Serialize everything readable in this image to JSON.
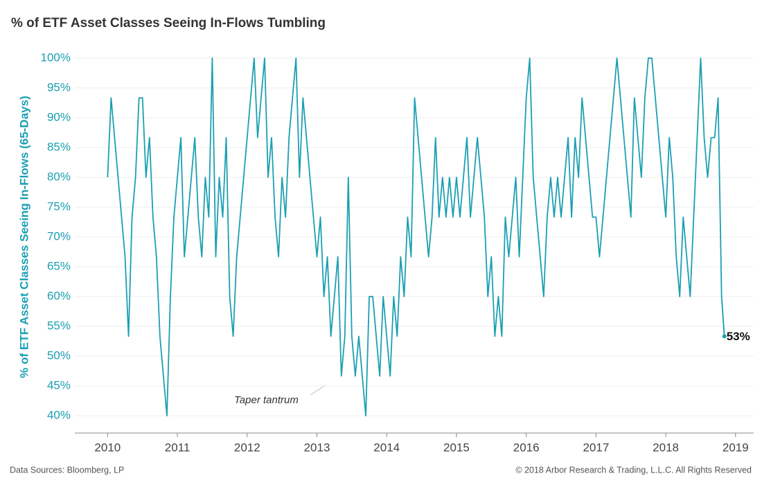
{
  "chart_data": {
    "type": "line",
    "title": "% of ETF Asset Classes Seeing In-Flows Tumbling",
    "y_label": "% of ETF Asset Classes Seeing In-Flows (65-Days)",
    "source": "Data Sources: Bloomberg, LP",
    "copyright": "© 2018 Arbor Research & Trading, L.L.C. All Rights Reserved",
    "annotation": "Taper tantrum",
    "end_label": "53%",
    "color": "#1a9fb2",
    "grid": true,
    "xlim": [
      2009.53,
      2019.26
    ],
    "xticks": [
      2010,
      2011,
      2012,
      2013,
      2014,
      2015,
      2016,
      2017,
      2018,
      2019
    ],
    "ylim": [
      37.1,
      102.2
    ],
    "yticks": [
      {
        "value": 40,
        "label": "40%"
      },
      {
        "value": 45,
        "label": "45%"
      },
      {
        "value": 50,
        "label": "50%"
      },
      {
        "value": 55,
        "label": "55%"
      },
      {
        "value": 60,
        "label": "60%"
      },
      {
        "value": 65,
        "label": "65%"
      },
      {
        "value": 70,
        "label": "70%"
      },
      {
        "value": 75,
        "label": "75%"
      },
      {
        "value": 80,
        "label": "80%"
      },
      {
        "value": 85,
        "label": "85%"
      },
      {
        "value": 90,
        "label": "90%"
      },
      {
        "value": 95,
        "label": "95%"
      },
      {
        "value": 100,
        "label": "100%"
      }
    ],
    "x": [
      2010.0,
      2010.05,
      2010.1,
      2010.15,
      2010.2,
      2010.25,
      2010.3,
      2010.35,
      2010.4,
      2010.45,
      2010.5,
      2010.55,
      2010.6,
      2010.65,
      2010.7,
      2010.75,
      2010.8,
      2010.85,
      2010.9,
      2010.95,
      2011.0,
      2011.05,
      2011.1,
      2011.15,
      2011.2,
      2011.25,
      2011.3,
      2011.35,
      2011.4,
      2011.45,
      2011.5,
      2011.55,
      2011.6,
      2011.65,
      2011.7,
      2011.75,
      2011.8,
      2011.85,
      2011.9,
      2011.95,
      2012.0,
      2012.05,
      2012.1,
      2012.15,
      2012.2,
      2012.25,
      2012.3,
      2012.35,
      2012.4,
      2012.45,
      2012.5,
      2012.55,
      2012.6,
      2012.65,
      2012.7,
      2012.75,
      2012.8,
      2012.85,
      2012.9,
      2012.95,
      2013.0,
      2013.05,
      2013.1,
      2013.15,
      2013.2,
      2013.25,
      2013.3,
      2013.35,
      2013.4,
      2013.45,
      2013.5,
      2013.55,
      2013.6,
      2013.65,
      2013.7,
      2013.75,
      2013.8,
      2013.85,
      2013.9,
      2013.95,
      2014.0,
      2014.05,
      2014.1,
      2014.15,
      2014.2,
      2014.25,
      2014.3,
      2014.35,
      2014.4,
      2014.45,
      2014.5,
      2014.55,
      2014.6,
      2014.65,
      2014.7,
      2014.75,
      2014.8,
      2014.85,
      2014.9,
      2014.95,
      2015.0,
      2015.05,
      2015.1,
      2015.15,
      2015.2,
      2015.25,
      2015.3,
      2015.35,
      2015.4,
      2015.45,
      2015.5,
      2015.55,
      2015.6,
      2015.65,
      2015.7,
      2015.75,
      2015.8,
      2015.85,
      2015.9,
      2015.95,
      2016.0,
      2016.05,
      2016.1,
      2016.15,
      2016.2,
      2016.25,
      2016.3,
      2016.35,
      2016.4,
      2016.45,
      2016.5,
      2016.55,
      2016.6,
      2016.65,
      2016.7,
      2016.75,
      2016.8,
      2016.85,
      2016.9,
      2016.95,
      2017.0,
      2017.05,
      2017.1,
      2017.15,
      2017.2,
      2017.25,
      2017.3,
      2017.35,
      2017.4,
      2017.45,
      2017.5,
      2017.55,
      2017.6,
      2017.65,
      2017.7,
      2017.75,
      2017.8,
      2017.85,
      2017.9,
      2017.95,
      2018.0,
      2018.05,
      2018.1,
      2018.15,
      2018.2,
      2018.25,
      2018.3,
      2018.35,
      2018.4,
      2018.45,
      2018.5,
      2018.55,
      2018.6,
      2018.65,
      2018.7,
      2018.75,
      2018.8,
      2018.84
    ],
    "values": [
      80,
      93.33,
      86.67,
      80,
      73.33,
      66.67,
      53.33,
      73.33,
      80,
      93.33,
      93.33,
      80,
      86.67,
      73.33,
      66.67,
      53.33,
      46.67,
      40,
      60,
      73.33,
      80,
      86.67,
      66.67,
      73.33,
      80,
      86.67,
      73.33,
      66.67,
      80,
      73.33,
      100,
      66.67,
      80,
      73.33,
      86.67,
      60,
      53.33,
      66.67,
      73.33,
      80,
      86.67,
      93.33,
      100,
      86.67,
      93.33,
      100,
      80,
      86.67,
      73.33,
      66.67,
      80,
      73.33,
      86.67,
      93.33,
      100,
      80,
      93.33,
      86.67,
      80,
      73.33,
      66.67,
      73.33,
      60,
      66.67,
      53.33,
      60,
      66.67,
      46.67,
      53.33,
      80,
      53.33,
      46.67,
      53.33,
      46.67,
      40,
      60,
      60,
      53.33,
      46.67,
      60,
      53.33,
      46.67,
      60,
      53.33,
      66.67,
      60,
      73.33,
      66.67,
      93.33,
      86.67,
      80,
      73.33,
      66.67,
      73.33,
      86.67,
      73.33,
      80,
      73.33,
      80,
      73.33,
      80,
      73.33,
      80,
      86.67,
      73.33,
      80,
      86.67,
      80,
      73.33,
      60,
      66.67,
      53.33,
      60,
      53.33,
      73.33,
      66.67,
      73.33,
      80,
      66.67,
      80,
      93.33,
      100,
      80,
      73.33,
      66.67,
      60,
      73.33,
      80,
      73.33,
      80,
      73.33,
      80,
      86.67,
      73.33,
      86.67,
      80,
      93.33,
      86.67,
      80,
      73.33,
      73.33,
      66.67,
      73.33,
      80,
      86.67,
      93.33,
      100,
      93.33,
      86.67,
      80,
      73.33,
      93.33,
      86.67,
      80,
      93.33,
      100,
      100,
      93.33,
      86.67,
      80,
      73.33,
      86.67,
      80,
      66.67,
      60,
      73.33,
      66.67,
      60,
      73.33,
      86.67,
      100,
      86.67,
      80,
      86.67,
      86.67,
      93.33,
      60,
      53.33
    ]
  }
}
